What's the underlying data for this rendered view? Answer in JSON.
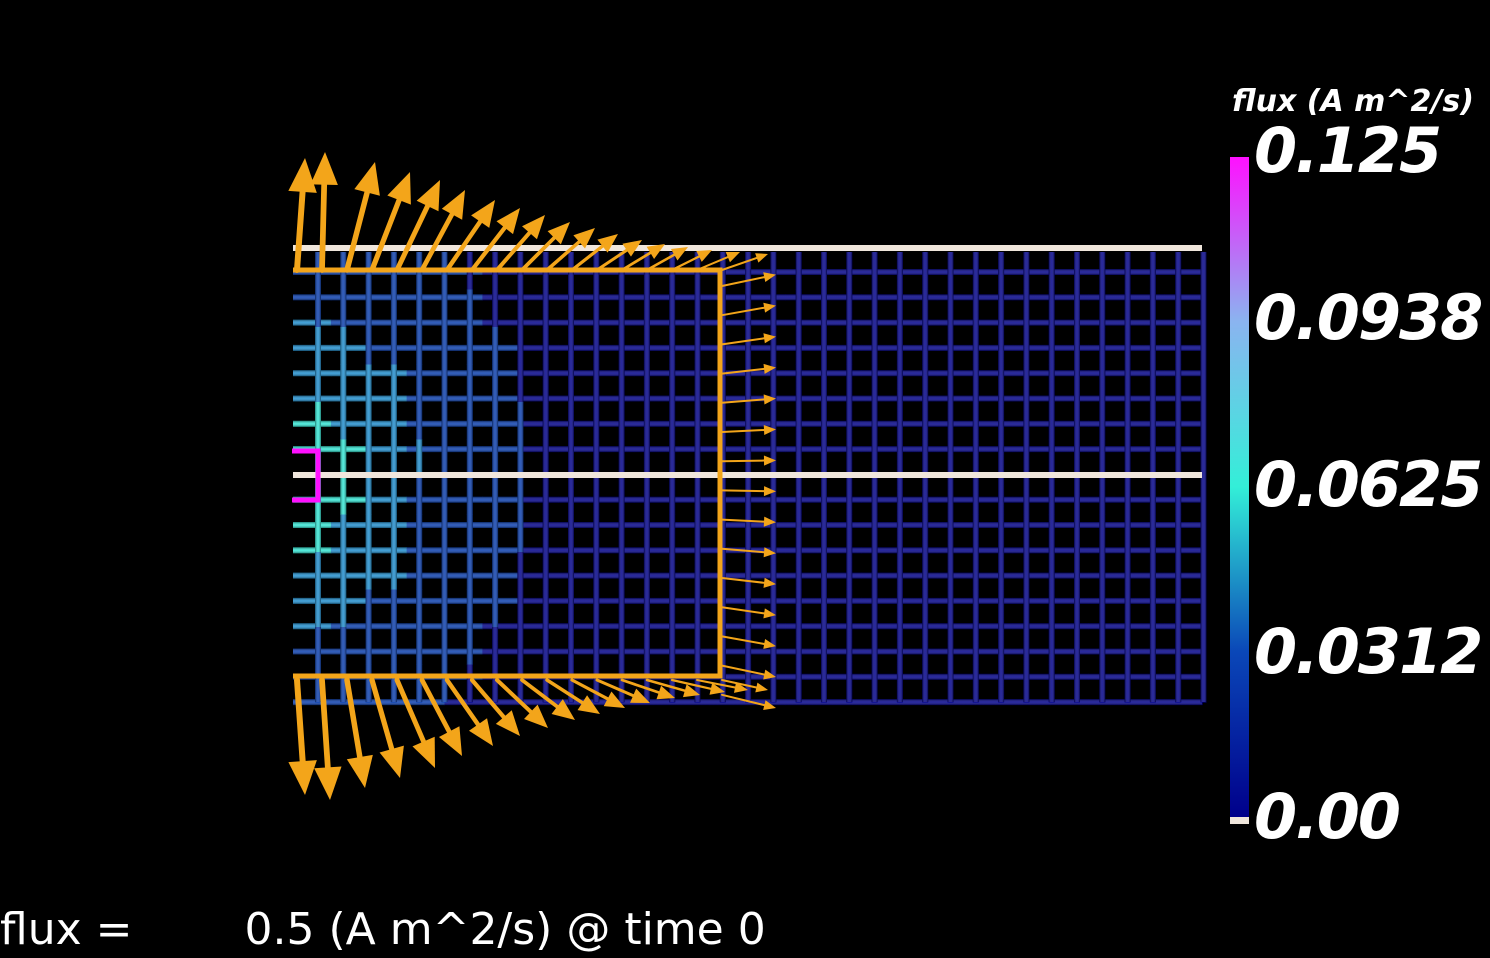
{
  "colorbar": {
    "title": "flux (A m^2/s)",
    "ticks": [
      "0.125",
      "0.0938",
      "0.0625",
      "0.0312",
      "0.00"
    ],
    "colors": [
      "#00008b",
      "#0a3fb0",
      "#1f8fd0",
      "#33e8d6",
      "#8fc4ee",
      "#c08ae8",
      "#ff1cff"
    ]
  },
  "status": {
    "label": "flux =",
    "value": "0.5 (A m^2/s) @ time 0"
  },
  "scene": {
    "background": "#000000",
    "grid_color": "#0a2aa0",
    "arrow_color": "#f3a51a",
    "boundary_color": "#f0e6dc",
    "highlight_color": "#ff10ff"
  }
}
